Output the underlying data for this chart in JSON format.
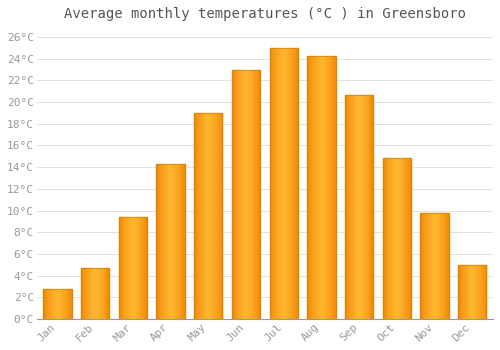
{
  "title": "Average monthly temperatures (°C ) in Greensboro",
  "months": [
    "Jan",
    "Feb",
    "Mar",
    "Apr",
    "May",
    "Jun",
    "Jul",
    "Aug",
    "Sep",
    "Oct",
    "Nov",
    "Dec"
  ],
  "values": [
    2.8,
    4.7,
    9.4,
    14.3,
    19.0,
    23.0,
    25.0,
    24.3,
    20.7,
    14.8,
    9.8,
    5.0
  ],
  "bar_color_light": "#FFB732",
  "bar_color_dark": "#F08000",
  "bar_edge_color": "#CC8800",
  "background_color": "#FFFFFF",
  "grid_color": "#DDDDDD",
  "text_color": "#999999",
  "title_color": "#555555",
  "ylim": [
    0,
    27
  ],
  "yticks": [
    0,
    2,
    4,
    6,
    8,
    10,
    12,
    14,
    16,
    18,
    20,
    22,
    24,
    26
  ],
  "title_fontsize": 10,
  "tick_fontsize": 8,
  "font_family": "monospace",
  "bar_width": 0.75
}
